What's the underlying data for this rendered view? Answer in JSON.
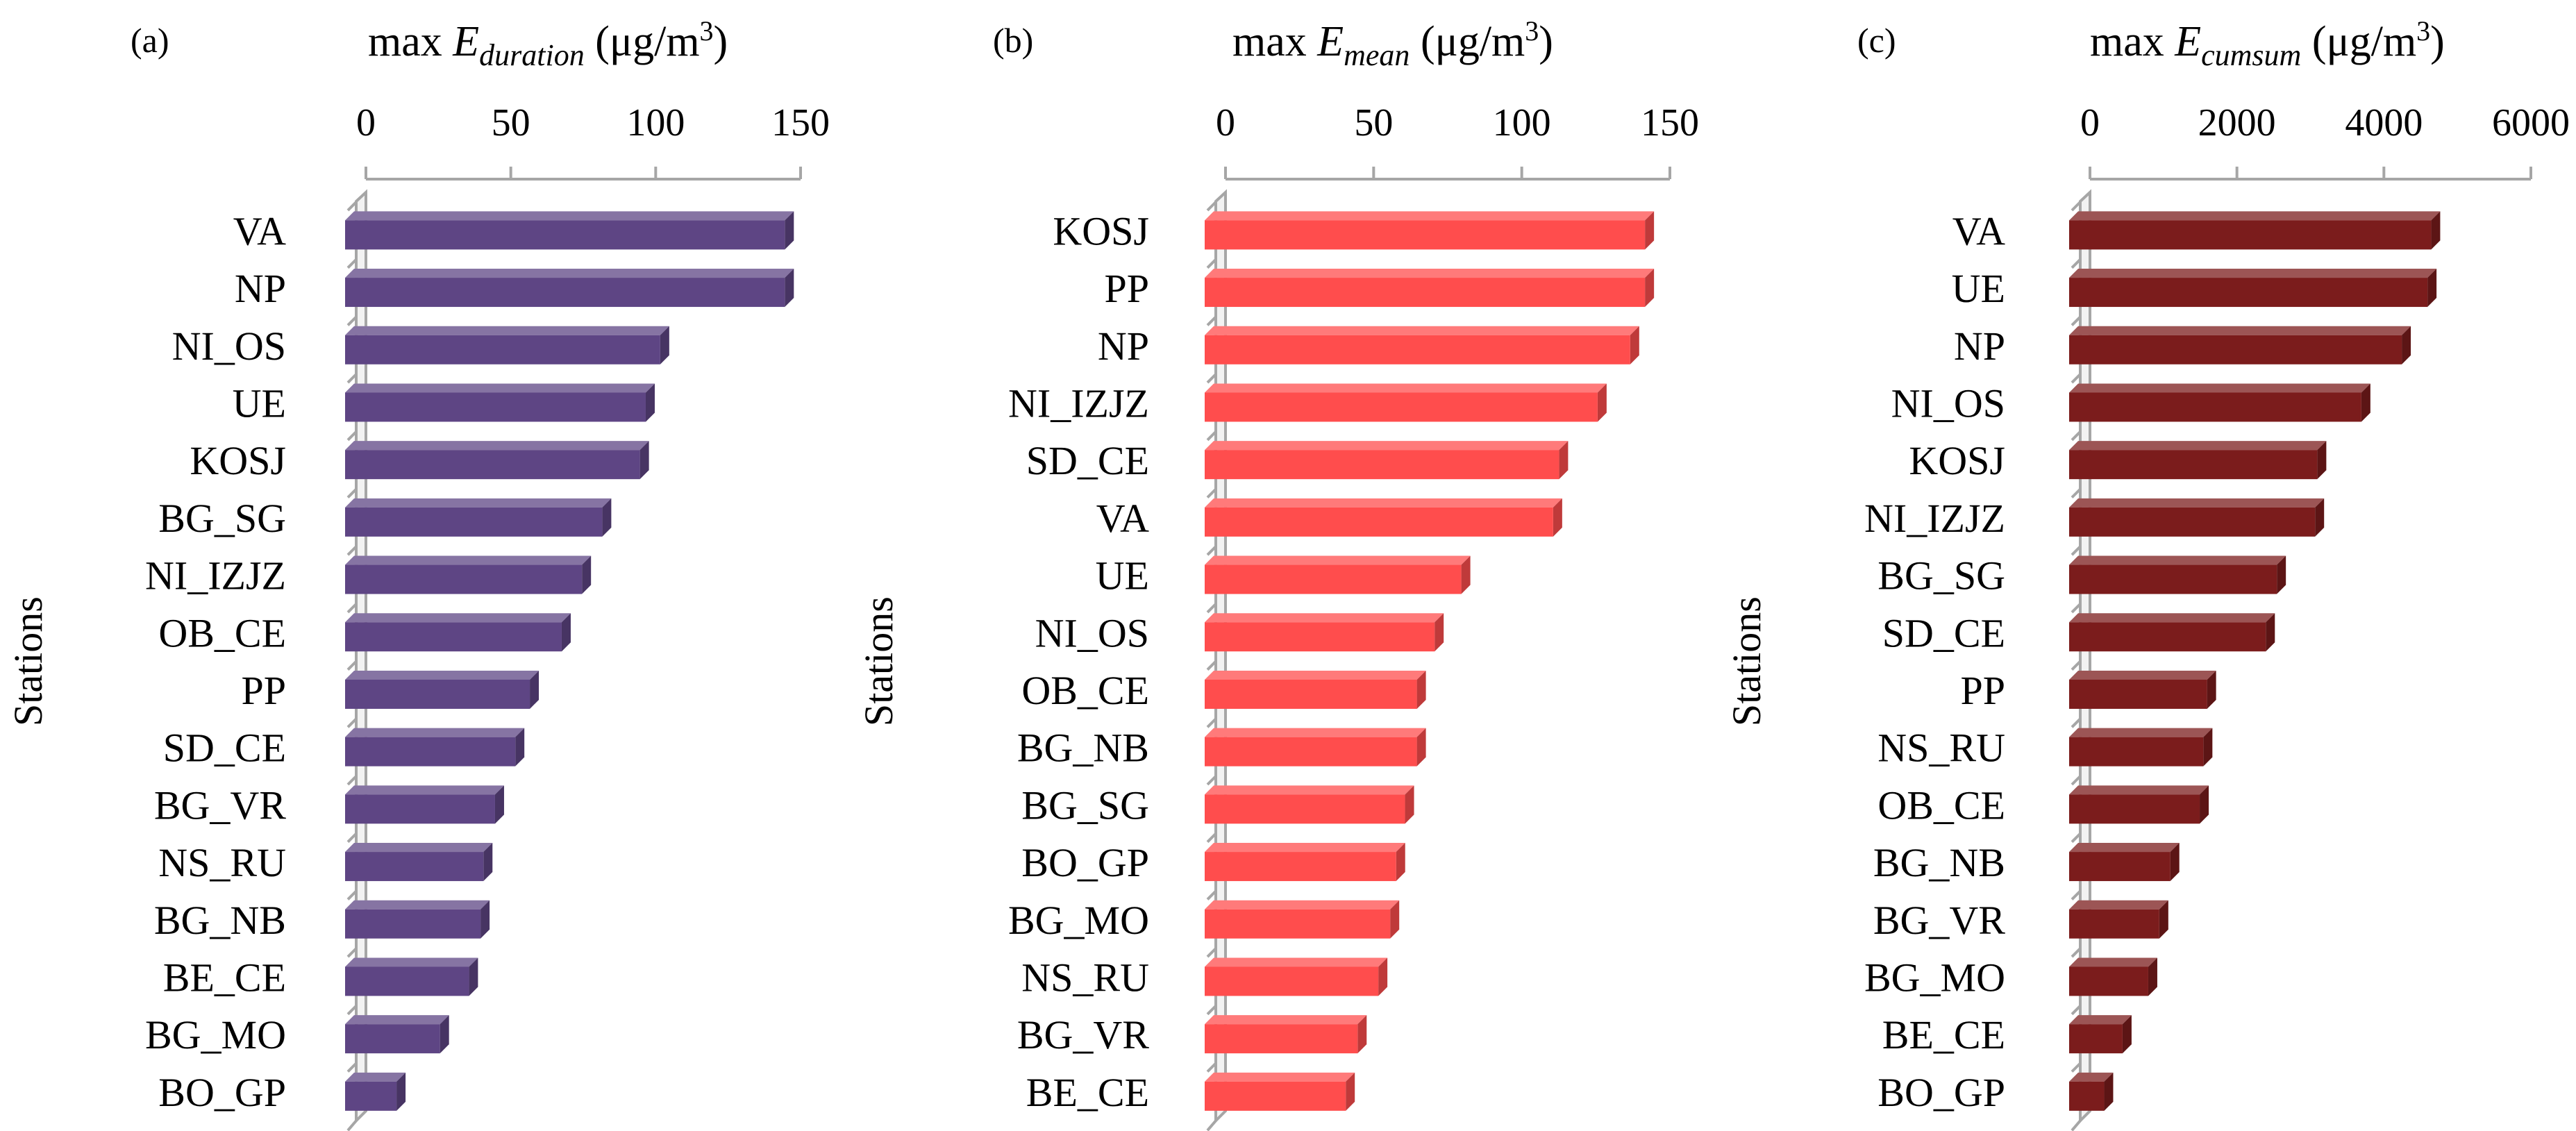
{
  "chart_data": [
    {
      "type": "bar",
      "orientation": "horizontal",
      "panel_label": "(a)",
      "title_prefix": "max ",
      "title_var": "E",
      "title_sub": "duration",
      "title_unit": " (μg/m",
      "title_sup": "3",
      "title_close": ")",
      "ylabel": "Stations",
      "xlim": [
        0,
        150
      ],
      "xticks": [
        "0",
        "50",
        "100",
        "150"
      ],
      "categories": [
        "VA",
        "NP",
        "NI_OS",
        "UE",
        "KOSJ",
        "BG_SG",
        "NI_IZJZ",
        "OB_CE",
        "PP",
        "SD_CE",
        "BG_VR",
        "NS_RU",
        "BG_NB",
        "BE_CE",
        "BG_MO",
        "BO_GP"
      ],
      "values": [
        146,
        146,
        103,
        98,
        96,
        83,
        76,
        69,
        58,
        53,
        46,
        42,
        41,
        37,
        27,
        12
      ],
      "color": "#5e4584"
    },
    {
      "type": "bar",
      "orientation": "horizontal",
      "panel_label": "(b)",
      "title_prefix": "max ",
      "title_var": "E",
      "title_sub": "mean",
      "title_unit": " (μg/m",
      "title_sup": "3",
      "title_close": ")",
      "ylabel": "Stations",
      "xlim": [
        0,
        150
      ],
      "xticks": [
        "0",
        "50",
        "100",
        "150"
      ],
      "categories": [
        "KOSJ",
        "PP",
        "NP",
        "NI_IZJZ",
        "SD_CE",
        "VA",
        "UE",
        "NI_OS",
        "OB_CE",
        "BG_NB",
        "BG_SG",
        "BO_GP",
        "BG_MO",
        "NS_RU",
        "BG_VR",
        "BE_CE"
      ],
      "values": [
        143,
        143,
        138,
        127,
        114,
        112,
        81,
        72,
        66,
        66,
        62,
        59,
        57,
        53,
        46,
        42
      ],
      "color": "#ff4d4d"
    },
    {
      "type": "bar",
      "orientation": "horizontal",
      "panel_label": "(c)",
      "title_prefix": "max ",
      "title_var": "E",
      "title_sub": "cumsum",
      "title_unit": " (μg/m",
      "title_sup": "3",
      "title_close": ")",
      "ylabel": "Stations",
      "xlim": [
        0,
        6000
      ],
      "xticks": [
        "0",
        "2000",
        "4000",
        "6000"
      ],
      "categories": [
        "VA",
        "UE",
        "NP",
        "NI_OS",
        "KOSJ",
        "NI_IZJZ",
        "BG_SG",
        "SD_CE",
        "PP",
        "NS_RU",
        "OB_CE",
        "BG_NB",
        "BG_VR",
        "BG_MO",
        "BE_CE",
        "BO_GP"
      ],
      "values": [
        4700,
        4650,
        4300,
        3750,
        3150,
        3120,
        2600,
        2450,
        1650,
        1600,
        1550,
        1150,
        1000,
        850,
        500,
        250
      ],
      "color": "#7b1c1c"
    }
  ]
}
